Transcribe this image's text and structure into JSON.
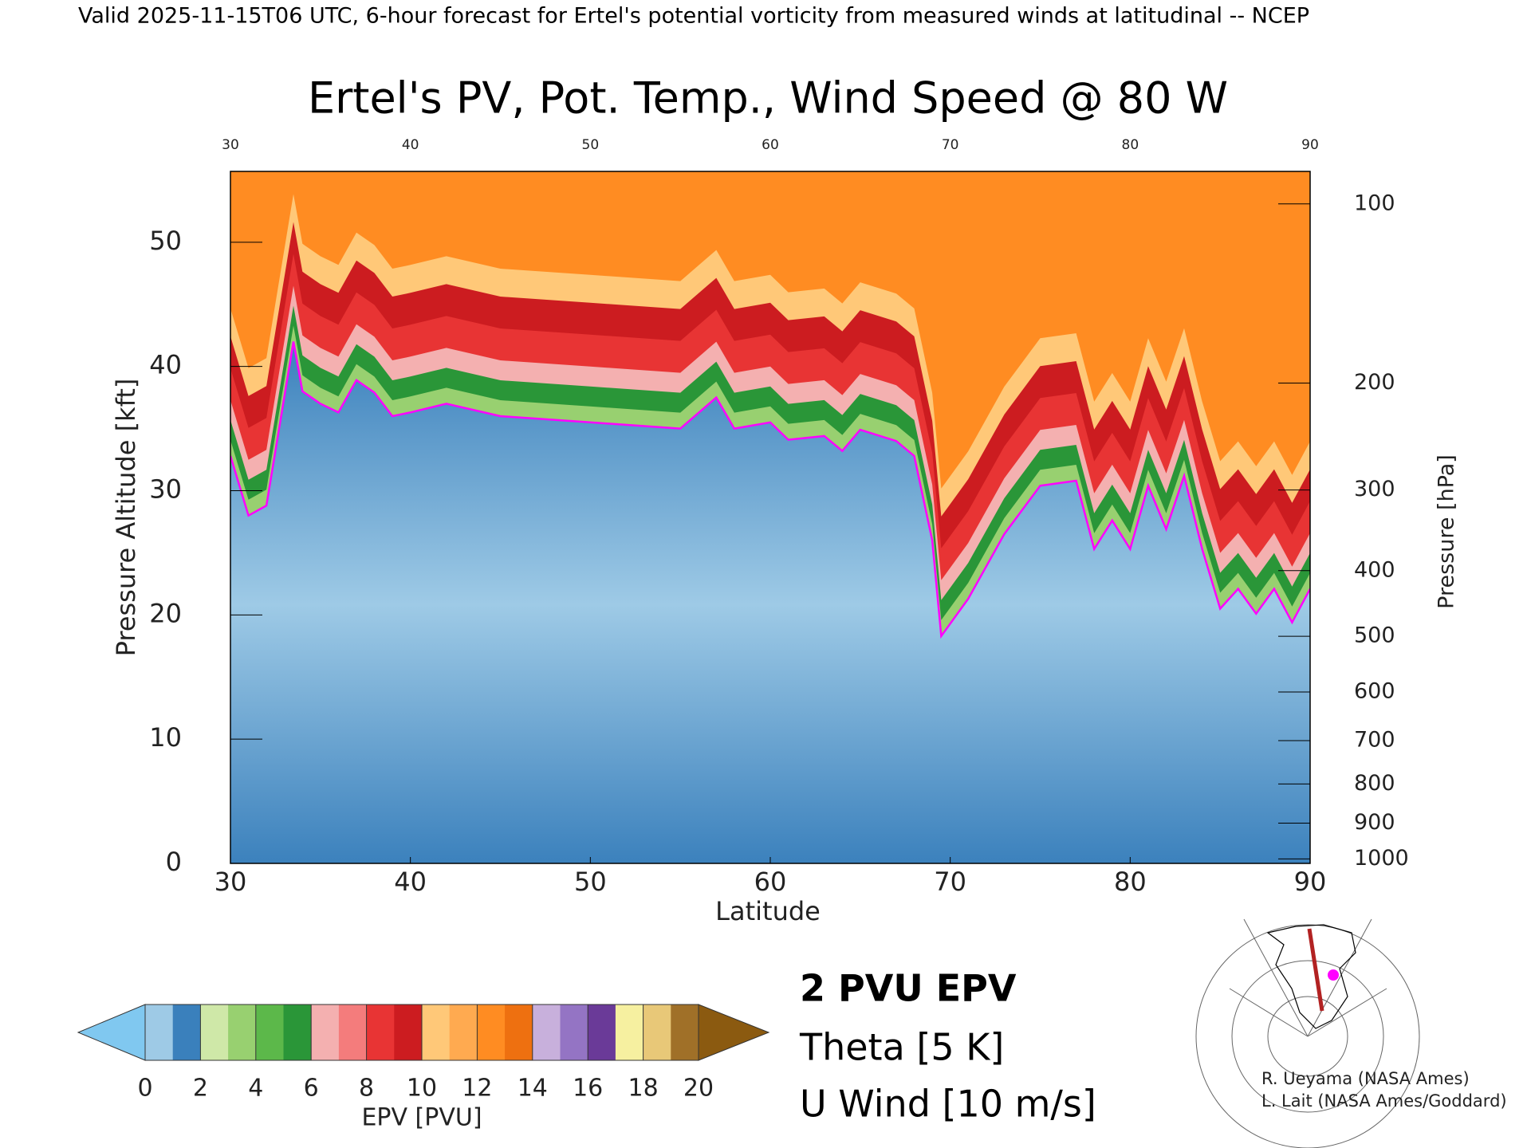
{
  "header": "Valid 2025-11-15T06 UTC, 6-hour forecast for Ertel's potential vorticity from measured winds at latitudinal -- NCEP",
  "chart_data": {
    "type": "cross-section",
    "title": "Ertel's PV, Pot. Temp., Wind Speed @ 80 W",
    "x_label": "Latitude",
    "y_label": "Pressure Altitude [kft]",
    "y2_label": "Pressure [hPa]",
    "xlim": [
      30,
      90
    ],
    "xticks": [
      30,
      40,
      50,
      60,
      70,
      80,
      90
    ],
    "ylim": [
      0,
      55.7
    ],
    "yticks": [
      0,
      10,
      20,
      30,
      40,
      50
    ],
    "y2scale": "pressure-altitude",
    "y2ticks": [
      100,
      200,
      300,
      400,
      500,
      600,
      700,
      800,
      900,
      1000
    ],
    "series": [
      {
        "name": "2 PVU EPV",
        "color": "#ff00ff",
        "x": [
          30,
          31,
          32,
          33.5,
          34,
          35,
          36,
          37,
          38,
          39,
          40,
          42,
          45,
          50,
          55,
          57,
          58,
          60,
          61,
          63,
          64,
          65,
          67,
          68,
          69,
          69.5,
          71,
          73,
          75,
          77,
          78,
          79,
          80,
          81,
          82,
          83,
          84,
          85,
          86,
          87,
          88,
          89,
          90
        ],
        "values": [
          32.8,
          28,
          28.8,
          42,
          38,
          37,
          36.3,
          38.9,
          37.9,
          36,
          36.3,
          37,
          36,
          35.5,
          35,
          37.5,
          35,
          35.5,
          34.1,
          34.4,
          33.2,
          34.9,
          34,
          32.8,
          26,
          18.3,
          21.3,
          26.5,
          30.4,
          30.8,
          25.3,
          27.6,
          25.3,
          30.4,
          26.9,
          31.2,
          25.3,
          20.5,
          22.1,
          20.1,
          22.1,
          19.4,
          22.1
        ]
      }
    ],
    "legend": [
      "Theta [5 K]",
      "U Wind [10 m/s]"
    ],
    "legend_colors": [
      "#aaaaaa",
      "#000000"
    ],
    "colorbar": {
      "label": "EPV [PVU]",
      "ticks": [
        0,
        2,
        4,
        6,
        8,
        10,
        12,
        14,
        16,
        18,
        20
      ],
      "under_color": "#80c8f0",
      "over_color": "#8b5a10",
      "colors": [
        "#9ecae6",
        "#3a80bc",
        "#cfe8a8",
        "#98d070",
        "#5cb84a",
        "#2a9638",
        "#f4b0b0",
        "#f47c7c",
        "#e83434",
        "#cc1c20",
        "#ffc878",
        "#ffaa50",
        "#ff8c22",
        "#ee7010",
        "#c8b0dc",
        "#9474c4",
        "#6a3a98",
        "#f6f0a0",
        "#e8c878",
        "#a07028"
      ]
    }
  },
  "credits": [
    "R. Ueyama (NASA Ames)",
    "L. Lait (NASA Ames/Goddard)"
  ]
}
